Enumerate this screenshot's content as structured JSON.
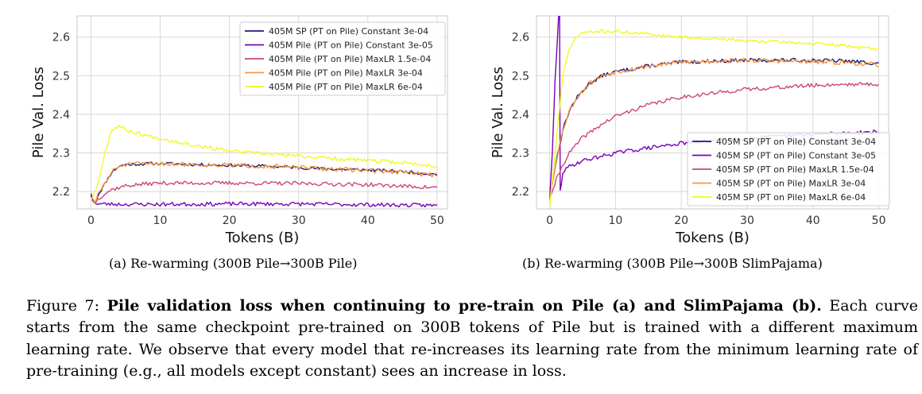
{
  "chart_data": [
    {
      "type": "line",
      "panel": "a",
      "xlabel": "Tokens (B)",
      "ylabel": "Pile Val. Loss",
      "xlim": [
        -2,
        51.5
      ],
      "ylim": [
        2.155,
        2.655
      ],
      "xticks": [
        0,
        10,
        20,
        30,
        40,
        50
      ],
      "yticks": [
        2.2,
        2.3,
        2.4,
        2.5,
        2.6
      ],
      "xtick_labels": [
        "0",
        "10",
        "20",
        "30",
        "40",
        "50"
      ],
      "ytick_labels": [
        "2.2",
        "2.3",
        "2.4",
        "2.5",
        "2.6"
      ],
      "grid": true,
      "legend_position": "top-right",
      "subcaption": "(a) Re-warming (300B Pile→300B Pile)",
      "series": [
        {
          "name": "405M SP (PT on Pile) Constant 3e-04",
          "color": "#1a1a7a",
          "jitter": 0.004,
          "seed": 11,
          "points": [
            [
              0,
              2.19
            ],
            [
              0.5,
              2.17
            ],
            [
              1,
              2.19
            ],
            [
              2,
              2.22
            ],
            [
              3,
              2.25
            ],
            [
              4,
              2.265
            ],
            [
              5,
              2.27
            ],
            [
              8,
              2.272
            ],
            [
              10,
              2.273
            ],
            [
              15,
              2.27
            ],
            [
              20,
              2.268
            ],
            [
              25,
              2.266
            ],
            [
              30,
              2.262
            ],
            [
              35,
              2.258
            ],
            [
              40,
              2.256
            ],
            [
              45,
              2.252
            ],
            [
              50,
              2.244
            ]
          ]
        },
        {
          "name": "405M Pile (PT on Pile) Constant 3e-05",
          "color": "#7a00b8",
          "jitter": 0.005,
          "seed": 23,
          "points": [
            [
              0,
              2.195
            ],
            [
              0.3,
              2.175
            ],
            [
              1,
              2.168
            ],
            [
              5,
              2.167
            ],
            [
              10,
              2.167
            ],
            [
              20,
              2.168
            ],
            [
              30,
              2.168
            ],
            [
              40,
              2.166
            ],
            [
              50,
              2.164
            ]
          ]
        },
        {
          "name": "405M Pile (PT on Pile) MaxLR 1.5e-04",
          "color": "#cc4778",
          "jitter": 0.005,
          "seed": 37,
          "points": [
            [
              0,
              2.18
            ],
            [
              0.5,
              2.17
            ],
            [
              1,
              2.18
            ],
            [
              2,
              2.195
            ],
            [
              3,
              2.205
            ],
            [
              5,
              2.215
            ],
            [
              8,
              2.22
            ],
            [
              10,
              2.222
            ],
            [
              20,
              2.222
            ],
            [
              30,
              2.221
            ],
            [
              40,
              2.218
            ],
            [
              50,
              2.21
            ]
          ]
        },
        {
          "name": "405M Pile (PT on Pile) MaxLR 3e-04",
          "color": "#f89540",
          "jitter": 0.006,
          "seed": 51,
          "points": [
            [
              0,
              2.18
            ],
            [
              0.5,
              2.17
            ],
            [
              1,
              2.19
            ],
            [
              2,
              2.22
            ],
            [
              3,
              2.25
            ],
            [
              4,
              2.265
            ],
            [
              5,
              2.27
            ],
            [
              8,
              2.272
            ],
            [
              10,
              2.273
            ],
            [
              15,
              2.27
            ],
            [
              20,
              2.268
            ],
            [
              25,
              2.266
            ],
            [
              30,
              2.262
            ],
            [
              35,
              2.258
            ],
            [
              40,
              2.255
            ],
            [
              45,
              2.25
            ],
            [
              50,
              2.242
            ]
          ]
        },
        {
          "name": "405M Pile (PT on Pile) MaxLR 6e-04",
          "color": "#f0f921",
          "jitter": 0.005,
          "seed": 67,
          "points": [
            [
              0,
              2.175
            ],
            [
              1,
              2.22
            ],
            [
              2,
              2.3
            ],
            [
              3,
              2.36
            ],
            [
              4,
              2.37
            ],
            [
              5,
              2.36
            ],
            [
              8,
              2.345
            ],
            [
              10,
              2.338
            ],
            [
              15,
              2.32
            ],
            [
              20,
              2.305
            ],
            [
              25,
              2.298
            ],
            [
              30,
              2.292
            ],
            [
              35,
              2.286
            ],
            [
              40,
              2.28
            ],
            [
              45,
              2.275
            ],
            [
              50,
              2.265
            ]
          ]
        }
      ]
    },
    {
      "type": "line",
      "panel": "b",
      "xlabel": "Tokens (B)",
      "ylabel": "Pile Val. Loss",
      "xlim": [
        -2,
        51.5
      ],
      "ylim": [
        2.155,
        2.655
      ],
      "xticks": [
        0,
        10,
        20,
        30,
        40,
        50
      ],
      "yticks": [
        2.2,
        2.3,
        2.4,
        2.5,
        2.6
      ],
      "xtick_labels": [
        "0",
        "10",
        "20",
        "30",
        "40",
        "50"
      ],
      "ytick_labels": [
        "2.2",
        "2.3",
        "2.4",
        "2.5",
        "2.6"
      ],
      "grid": true,
      "legend_position": "lower-right",
      "subcaption": "(b) Re-warming (300B Pile→300B SlimPajama)",
      "series": [
        {
          "name": "405M SP (PT on Pile) Constant 3e-04",
          "color": "#1a1a7a",
          "jitter": 0.005,
          "seed": 13,
          "points": [
            [
              0,
              2.18
            ],
            [
              1,
              2.28
            ],
            [
              2,
              2.36
            ],
            [
              3,
              2.41
            ],
            [
              4,
              2.44
            ],
            [
              6,
              2.48
            ],
            [
              8,
              2.5
            ],
            [
              10,
              2.51
            ],
            [
              15,
              2.525
            ],
            [
              20,
              2.535
            ],
            [
              25,
              2.538
            ],
            [
              30,
              2.54
            ],
            [
              35,
              2.54
            ],
            [
              40,
              2.54
            ],
            [
              45,
              2.538
            ],
            [
              50,
              2.532
            ]
          ]
        },
        {
          "name": "405M SP (PT on Pile) Constant 3e-05",
          "color": "#7a00b8",
          "jitter": 0.005,
          "seed": 29,
          "points": [
            [
              0,
              2.18
            ],
            [
              0.4,
              2.3
            ],
            [
              0.8,
              2.48
            ],
            [
              1.2,
              2.6
            ],
            [
              1.5,
              2.7
            ],
            [
              1.6,
              2.2
            ],
            [
              2,
              2.25
            ],
            [
              3,
              2.265
            ],
            [
              5,
              2.28
            ],
            [
              10,
              2.3
            ],
            [
              15,
              2.313
            ],
            [
              20,
              2.325
            ],
            [
              25,
              2.332
            ],
            [
              30,
              2.338
            ],
            [
              35,
              2.343
            ],
            [
              40,
              2.348
            ],
            [
              45,
              2.352
            ],
            [
              50,
              2.355
            ]
          ]
        },
        {
          "name": "405M SP (PT on Pile) MaxLR 1.5e-04",
          "color": "#cc4778",
          "jitter": 0.005,
          "seed": 41,
          "points": [
            [
              0,
              2.18
            ],
            [
              1,
              2.23
            ],
            [
              2,
              2.27
            ],
            [
              3,
              2.3
            ],
            [
              5,
              2.34
            ],
            [
              8,
              2.375
            ],
            [
              10,
              2.395
            ],
            [
              15,
              2.425
            ],
            [
              20,
              2.445
            ],
            [
              25,
              2.455
            ],
            [
              30,
              2.465
            ],
            [
              35,
              2.47
            ],
            [
              40,
              2.475
            ],
            [
              45,
              2.478
            ],
            [
              50,
              2.478
            ]
          ]
        },
        {
          "name": "405M SP (PT on Pile) MaxLR 3e-04",
          "color": "#f89540",
          "jitter": 0.006,
          "seed": 53,
          "points": [
            [
              0,
              2.18
            ],
            [
              1,
              2.28
            ],
            [
              2,
              2.36
            ],
            [
              3,
              2.41
            ],
            [
              4,
              2.44
            ],
            [
              6,
              2.48
            ],
            [
              8,
              2.5
            ],
            [
              10,
              2.51
            ],
            [
              15,
              2.525
            ],
            [
              20,
              2.535
            ],
            [
              25,
              2.538
            ],
            [
              30,
              2.54
            ],
            [
              35,
              2.538
            ],
            [
              40,
              2.536
            ],
            [
              45,
              2.534
            ],
            [
              50,
              2.528
            ]
          ]
        },
        {
          "name": "405M SP (PT on Pile) MaxLR 6e-04",
          "color": "#f0f921",
          "jitter": 0.004,
          "seed": 71,
          "points": [
            [
              0,
              2.16
            ],
            [
              1,
              2.33
            ],
            [
              2,
              2.5
            ],
            [
              3,
              2.57
            ],
            [
              4,
              2.6
            ],
            [
              5,
              2.612
            ],
            [
              8,
              2.615
            ],
            [
              10,
              2.615
            ],
            [
              15,
              2.608
            ],
            [
              20,
              2.6
            ],
            [
              25,
              2.596
            ],
            [
              30,
              2.59
            ],
            [
              35,
              2.588
            ],
            [
              40,
              2.583
            ],
            [
              45,
              2.578
            ],
            [
              50,
              2.568
            ]
          ]
        }
      ]
    }
  ],
  "caption": {
    "label": "Figure 7:",
    "bold": "Pile validation loss when continuing to pre-train on Pile (a) and SlimPajama (b).",
    "text": "Each curve starts from the same checkpoint pre-trained on 300B tokens of Pile but is trained with a different maximum learning rate. We observe that every model that re-increases its learning rate from the minimum learning rate of pre-training (e.g., all models except constant) sees an increase in loss."
  }
}
